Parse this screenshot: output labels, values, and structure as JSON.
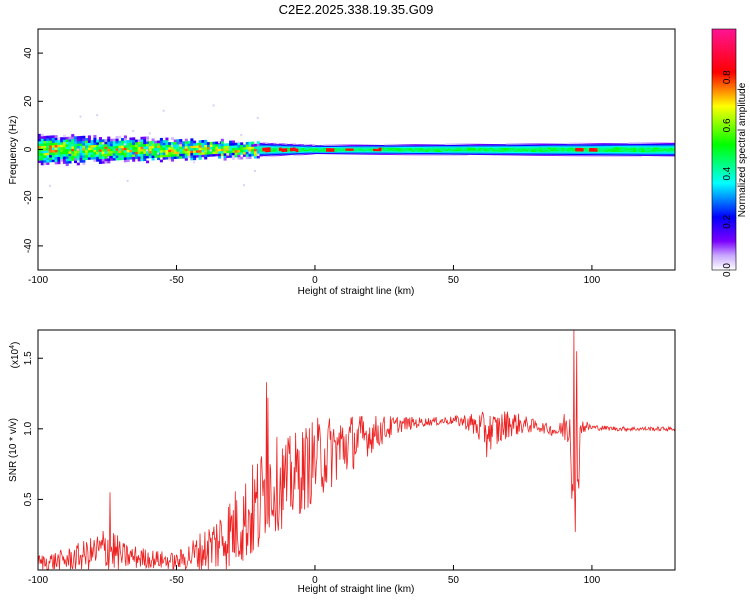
{
  "title": "C2E2.2025.338.19.35.G09",
  "chart_data": [
    {
      "type": "heatmap",
      "xlabel": "Height of straight line (km)",
      "ylabel": "Frequency (Hz)",
      "xlim": [
        -100,
        130
      ],
      "ylim": [
        -50,
        50
      ],
      "xticks": [
        -100,
        -50,
        0,
        50,
        100
      ],
      "yticks": [
        -40,
        -20,
        0,
        20,
        40
      ],
      "colorbar": {
        "label": "Normalized spectral amplitude",
        "range": [
          0,
          1
        ],
        "ticks": [
          0.0,
          0.2,
          0.4,
          0.6,
          0.8
        ],
        "colormap": [
          "#ffffff",
          "#7a00ff",
          "#0000ff",
          "#00ffff",
          "#00ff00",
          "#ffff00",
          "#ff0000",
          "#ff00a0"
        ]
      },
      "ridge_center_hz": 0,
      "ridge_halfwidth_hz": [
        [
          -100,
          6
        ],
        [
          -20,
          3
        ],
        [
          0,
          2
        ],
        [
          130,
          3
        ]
      ],
      "noisy_segment_km": [
        -100,
        -20
      ],
      "hot_spots_km": [
        -18,
        -12,
        -8,
        5,
        12,
        22,
        95,
        100
      ]
    },
    {
      "type": "line",
      "xlabel": "Height of straight line (km)",
      "ylabel": "SNR (10 * v/v)",
      "yscale_label": "(x10",
      "yscale_exp": "4",
      "xlim": [
        -100,
        130
      ],
      "ylim": [
        0,
        1.7
      ],
      "xticks": [
        -100,
        -50,
        0,
        50,
        100
      ],
      "yticks": [
        0.5,
        1.0,
        1.5
      ],
      "ytick_labels": [
        "0.5",
        "1.0",
        "1.5"
      ],
      "series": [
        {
          "color": "#ee2222",
          "envelope_x": [
            -100,
            -90,
            -80,
            -74,
            -70,
            -60,
            -50,
            -40,
            -35,
            -30,
            -25,
            -20,
            -17,
            -10,
            0,
            10,
            20,
            30,
            40,
            50,
            55,
            60,
            65,
            70,
            80,
            88,
            92,
            94,
            96,
            100,
            110,
            120,
            130
          ],
          "envelope_y": [
            0.05,
            0.07,
            0.12,
            0.16,
            0.1,
            0.08,
            0.06,
            0.14,
            0.2,
            0.28,
            0.36,
            0.45,
            0.6,
            0.62,
            0.78,
            0.88,
            0.96,
            1.03,
            1.05,
            1.06,
            1.05,
            1.0,
            0.98,
            1.04,
            1.02,
            0.98,
            1.05,
            0.5,
            1.02,
            1.01,
            1.0,
            1.0,
            1.0
          ],
          "envelope_noise": [
            0.06,
            0.08,
            0.12,
            0.2,
            0.1,
            0.07,
            0.06,
            0.16,
            0.22,
            0.28,
            0.32,
            0.4,
            0.35,
            0.32,
            0.3,
            0.24,
            0.14,
            0.06,
            0.03,
            0.03,
            0.06,
            0.12,
            0.14,
            0.1,
            0.04,
            0.04,
            0.2,
            0.6,
            0.06,
            0.02,
            0.015,
            0.015,
            0.015
          ],
          "spikes": [
            {
              "x": -74,
              "y": 0.55
            },
            {
              "x": -17.5,
              "y": 1.33
            },
            {
              "x": -17,
              "y": 1.22
            },
            {
              "x": 62,
              "y": 0.8
            },
            {
              "x": 93.5,
              "y": 1.7
            },
            {
              "x": 94,
              "y": 0.27
            },
            {
              "x": 94.5,
              "y": 1.55
            }
          ]
        }
      ]
    }
  ]
}
